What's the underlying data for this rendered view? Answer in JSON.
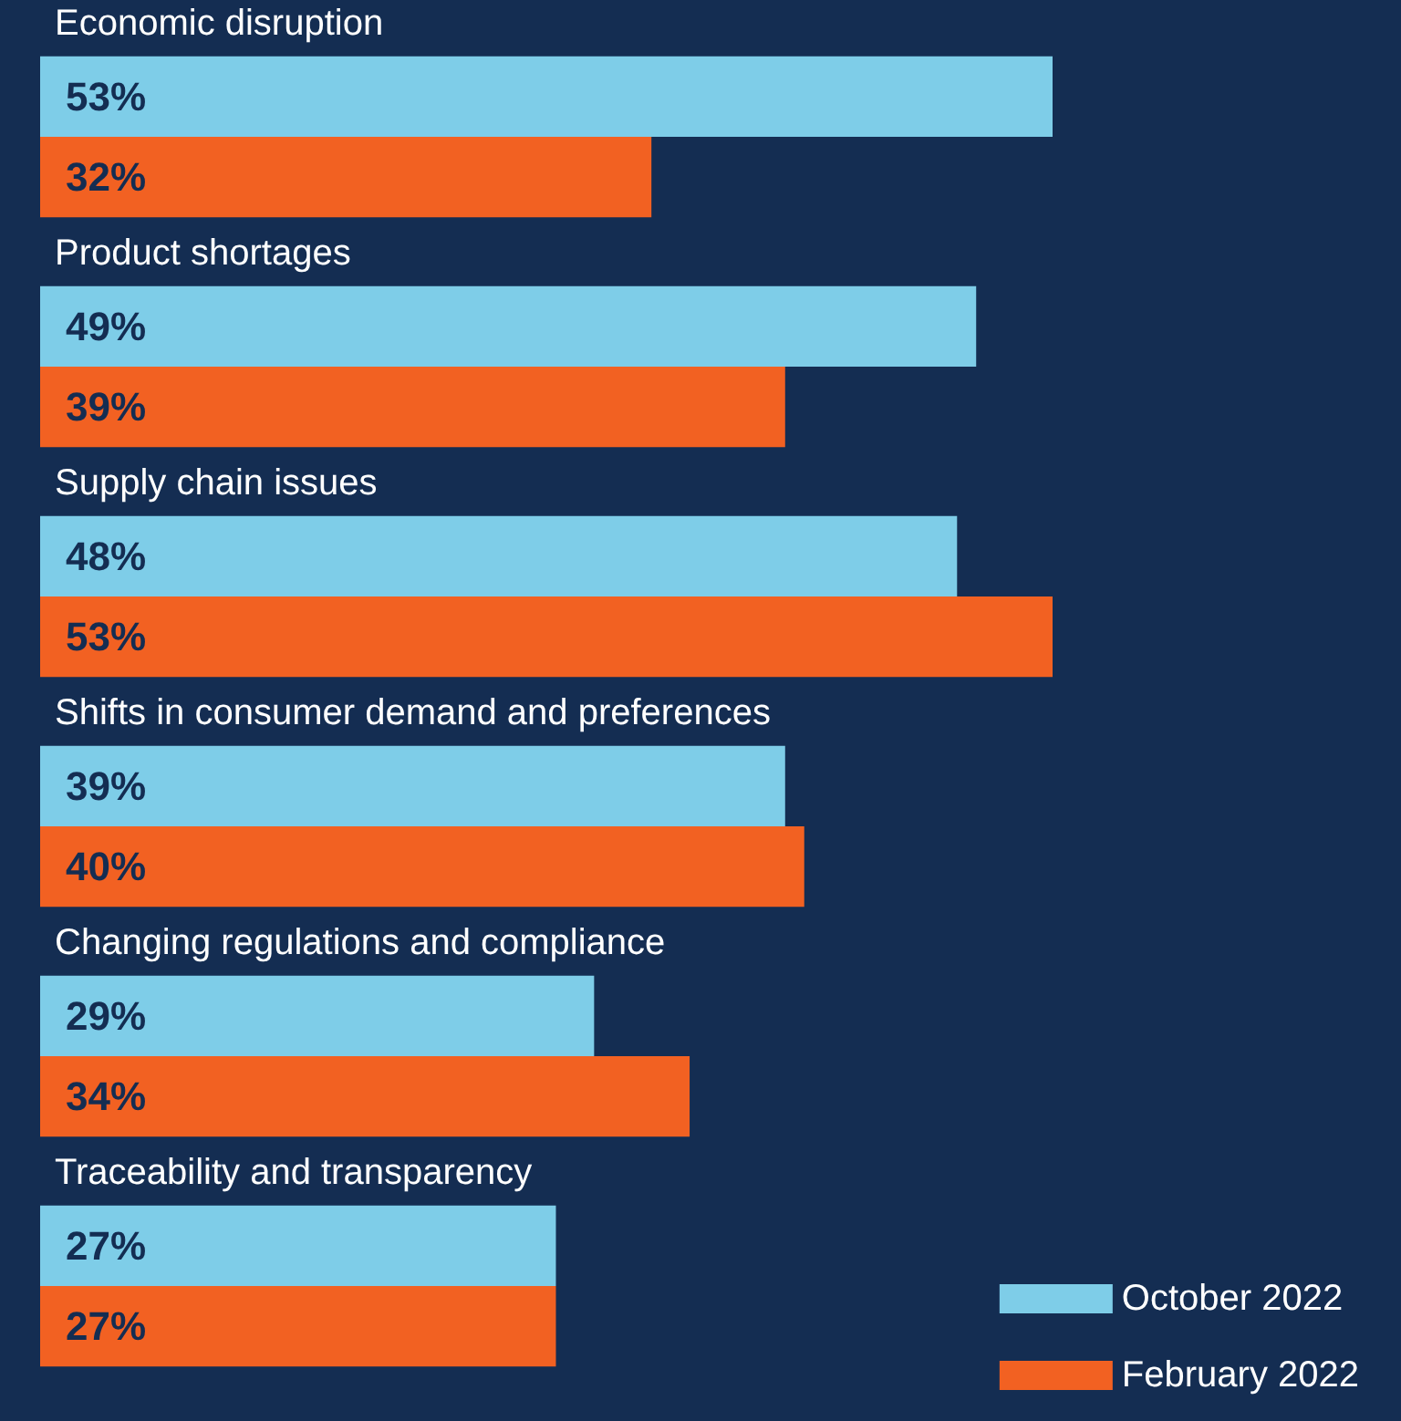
{
  "chart_data": {
    "type": "bar",
    "orientation": "horizontal",
    "legend": "bottom right",
    "categories": [
      "Economic disruption",
      "Product shortages",
      "Supply chain issues",
      "Shifts in consumer demand and preferences",
      "Changing regulations and compliance",
      "Traceability and transparency"
    ],
    "series": [
      {
        "name": "October 2022",
        "color": "#7ecde8",
        "values": [
          53,
          49,
          48,
          39,
          29,
          27
        ],
        "value_labels": [
          "53%",
          "49%",
          "48%",
          "39%",
          "29%",
          "27%"
        ]
      },
      {
        "name": "February 2022",
        "color": "#f26122",
        "values": [
          32,
          39,
          53,
          40,
          34,
          27
        ],
        "value_labels": [
          "32%",
          "39%",
          "53%",
          "40%",
          "34%",
          "27%"
        ]
      }
    ]
  }
}
